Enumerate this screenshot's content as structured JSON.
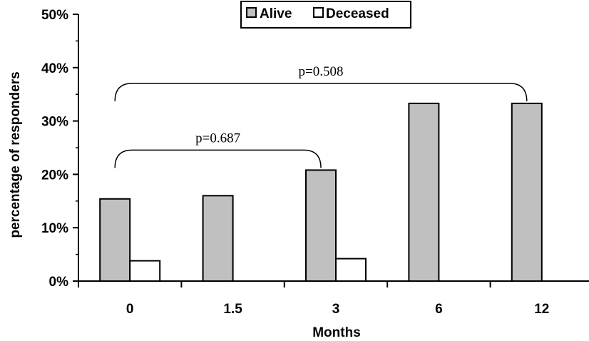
{
  "chart_data": {
    "type": "bar",
    "xlabel": "Months",
    "ylabel": "percentage of responders",
    "categories": [
      "0",
      "1.5",
      "3",
      "6",
      "12"
    ],
    "series": [
      {
        "name": "Alive",
        "values": [
          15.4,
          16.0,
          20.8,
          33.3,
          33.3
        ],
        "color": "#c0c0c0"
      },
      {
        "name": "Deceased",
        "values": [
          3.8,
          0,
          4.2,
          0,
          0
        ],
        "color": "#ffffff"
      }
    ],
    "ylim": [
      0,
      50
    ],
    "yticks": [
      "0%",
      "10%",
      "20%",
      "30%",
      "40%",
      "50%"
    ],
    "legend_position": "top-center",
    "grid": false,
    "annotations": [
      {
        "text": "p=0.687",
        "from_category": "0",
        "to_category": "3"
      },
      {
        "text": "p=0.508",
        "from_category": "0",
        "to_category": "12"
      }
    ]
  }
}
